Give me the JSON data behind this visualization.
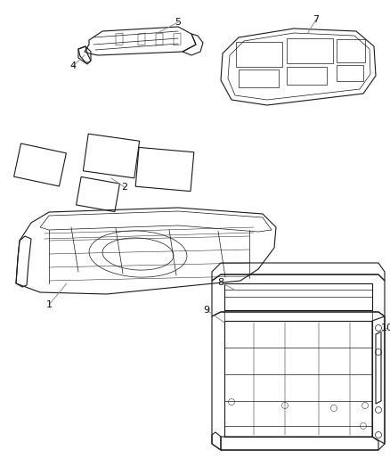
{
  "background_color": "#ffffff",
  "fig_width": 4.38,
  "fig_height": 5.33,
  "dpi": 100,
  "line_color": "#1a1a1a",
  "leader_color": "#888888",
  "label_color": "#111111",
  "label_fontsize": 8.0
}
